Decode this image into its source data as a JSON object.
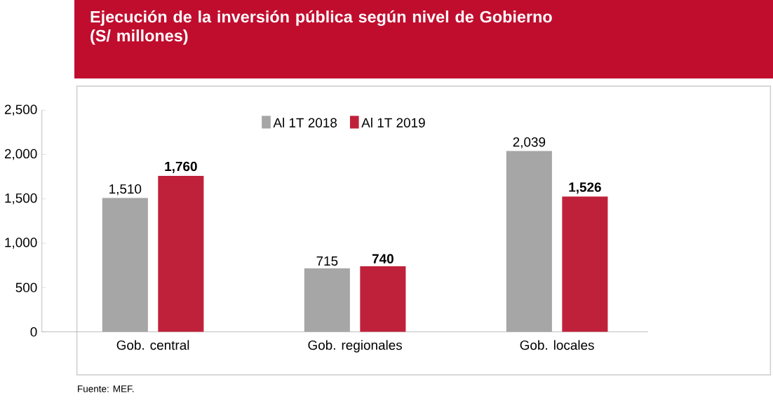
{
  "chart_data": {
    "type": "bar",
    "title": "Ejecución de la inversión pública según nivel de Gobierno",
    "subtitle": "(S/ millones)",
    "categories": [
      "Gob. central",
      "Gob. regionales",
      "Gob. locales"
    ],
    "series": [
      {
        "name": "Al 1T 2018",
        "color": "#a6a6a6",
        "values": [
          1510,
          715,
          2039
        ],
        "value_labels": [
          "1,510",
          "715",
          "2,039"
        ]
      },
      {
        "name": "Al 1T 2019",
        "color": "#c0213a",
        "values": [
          1760,
          740,
          1526
        ],
        "value_labels": [
          "1,760",
          "740",
          "1,526"
        ]
      }
    ],
    "ylim": [
      0,
      2500
    ],
    "yticks": [
      0,
      500,
      {
        "value": 1000,
        "label": "1,000"
      },
      {
        "value": 1500,
        "label": "1,500"
      },
      {
        "value": 2000,
        "label": "2,000"
      },
      {
        "value": 2500,
        "label": "2,500"
      }
    ],
    "legend": "top",
    "grid": false,
    "annotations": [
      "Fuente: MEF."
    ]
  }
}
